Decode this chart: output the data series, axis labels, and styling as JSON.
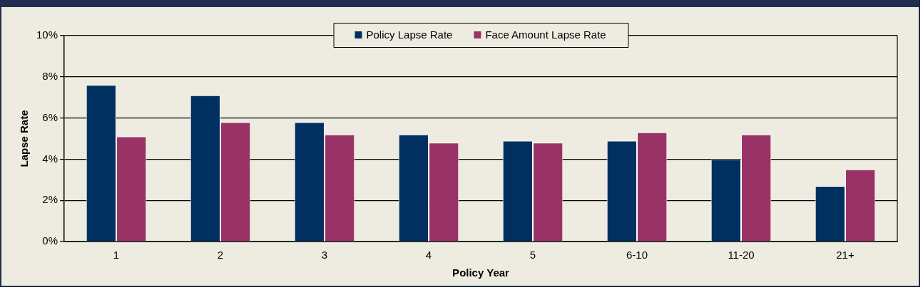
{
  "chart_data": {
    "type": "bar",
    "xlabel": "Policy Year",
    "ylabel": "Lapse Rate",
    "categories": [
      "1",
      "2",
      "3",
      "4",
      "5",
      "6-10",
      "11-20",
      "21+"
    ],
    "series": [
      {
        "name": "Policy Lapse Rate",
        "color": "#003060",
        "values": [
          7.6,
          7.1,
          5.8,
          5.2,
          4.9,
          4.9,
          4.0,
          2.7
        ]
      },
      {
        "name": "Face Amount Lapse Rate",
        "color": "#993366",
        "values": [
          5.1,
          5.8,
          5.2,
          4.8,
          4.8,
          5.3,
          5.2,
          3.5
        ]
      }
    ],
    "ylim": [
      0,
      10
    ],
    "yticks": [
      {
        "value": 0,
        "label": "0%"
      },
      {
        "value": 2,
        "label": "2%"
      },
      {
        "value": 4,
        "label": "4%"
      },
      {
        "value": 6,
        "label": "6%"
      },
      {
        "value": 8,
        "label": "8%"
      },
      {
        "value": 10,
        "label": "10%"
      }
    ],
    "grid": "y",
    "legend": "top"
  }
}
